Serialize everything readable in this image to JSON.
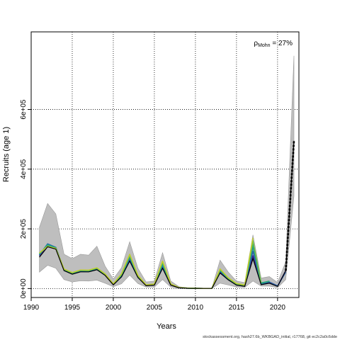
{
  "chart_data": {
    "type": "line",
    "xlabel": "Years",
    "ylabel": "Recruits (age 1)",
    "xlim": [
      1990,
      2022.6
    ],
    "ylim": [
      -30000,
      860000
    ],
    "x_ticks": [
      1990,
      1995,
      2000,
      2005,
      2010,
      2015,
      2020
    ],
    "x_tick_labels": [
      "1990",
      "1995",
      "2000",
      "2005",
      "2010",
      "2015",
      "2020"
    ],
    "y_ticks": [
      0,
      200000,
      400000,
      600000
    ],
    "y_tick_labels": [
      "0e+00",
      "2e+05",
      "4e+05",
      "6e+05"
    ],
    "grid": true,
    "annotation": {
      "prefix": "ρ",
      "subscript": "Mohn",
      "text": " = 27%"
    },
    "footer": "stockassessment.org, hash27.6b_WKBGAD_initial, r17768, git ec2c2a0c6dde",
    "years": [
      1991,
      1992,
      1993,
      1994,
      1995,
      1996,
      1997,
      1998,
      1999,
      2000,
      2001,
      2002,
      2003,
      2004,
      2005,
      2006,
      2007,
      2008,
      2009,
      2010,
      2011,
      2012,
      2013,
      2014,
      2015,
      2016,
      2017,
      2018,
      2019,
      2020,
      2021,
      2022
    ],
    "band_upper": [
      205000,
      285000,
      250000,
      115000,
      100000,
      115000,
      112000,
      142000,
      75000,
      32000,
      70000,
      157000,
      68000,
      22000,
      25000,
      120000,
      25000,
      6000,
      3000,
      1500,
      1000,
      1500,
      95000,
      55000,
      25000,
      20000,
      180000,
      35000,
      40000,
      20000,
      90000,
      780000
    ],
    "band_lower": [
      55000,
      78000,
      68000,
      30000,
      22000,
      26000,
      25000,
      28000,
      18000,
      6000,
      16000,
      45000,
      17000,
      5000,
      5000,
      30000,
      5000,
      1000,
      500,
      200,
      150,
      200,
      18000,
      12000,
      5000,
      4000,
      25000,
      8000,
      8000,
      3000,
      30000,
      310000
    ],
    "colors": {
      "band": "#bebebe",
      "band_edge": "#9a9a9a",
      "final": "#000000"
    },
    "series": [
      {
        "color": "#3b1f8c",
        "values": [
          110000,
          145000,
          135000,
          62000,
          50000,
          58000,
          57000,
          65000,
          45000,
          13000,
          40000,
          95000,
          38000,
          10000,
          12000,
          70000,
          12000,
          2500,
          1000,
          600,
          400,
          500,
          55000,
          30000,
          12000,
          8000,
          110000,
          14000,
          20000,
          8000,
          60000
        ]
      },
      {
        "color": "#2c5ea8",
        "values": [
          112000,
          150000,
          138000,
          64000,
          52000,
          59000,
          58000,
          66000,
          46000,
          14000,
          42000,
          100000,
          40000,
          10500,
          13000,
          75000,
          13000,
          2800,
          1100,
          650,
          420,
          520,
          58000,
          32000,
          13000,
          9000,
          125000,
          15000,
          22000,
          9000,
          55000
        ]
      },
      {
        "color": "#1f8f9a",
        "values": [
          114000,
          148000,
          137000,
          63000,
          51000,
          60000,
          59000,
          67000,
          47000,
          14500,
          44000,
          105000,
          41000,
          11000,
          13500,
          80000,
          13500,
          3000,
          1200,
          700,
          450,
          550,
          60000,
          33000,
          14000,
          9500,
          140000,
          17000,
          24000
        ]
      },
      {
        "color": "#2aa876",
        "values": [
          116000,
          145000,
          136000,
          64000,
          52000,
          61000,
          60000,
          68000,
          48000,
          15000,
          46000,
          108000,
          42000,
          11500,
          14000,
          85000,
          14000,
          3100,
          1250,
          720,
          470,
          570,
          62000,
          34000,
          15000,
          10000,
          150000,
          19000,
          25000
        ]
      },
      {
        "color": "#6cbf4a",
        "values": [
          118000,
          142000,
          135000,
          65000,
          53000,
          61500,
          61000,
          69000,
          48500,
          15500,
          48000,
          112000,
          43000,
          12000,
          14500,
          90000,
          14500,
          3200,
          1300,
          740,
          480,
          580,
          64000,
          35000,
          16000,
          11000,
          160000,
          20000
        ]
      },
      {
        "color": "#bfcf2a",
        "values": [
          119000,
          141000,
          134000,
          65500,
          53500,
          62000,
          61500,
          69500,
          49000,
          16000,
          49000,
          115000,
          44000,
          12500,
          15000,
          92000,
          15000,
          3300,
          1350,
          760,
          490,
          590,
          66000,
          36000,
          17000,
          12000,
          170000
        ]
      }
    ],
    "final_series_values": [
      105000,
      140000,
      132000,
      60000,
      48000,
      56000,
      56000,
      63000,
      44000,
      12500,
      39000,
      92000,
      37000,
      9500,
      11500,
      68000,
      11500,
      2300,
      900,
      550,
      380,
      480,
      52000,
      29000,
      11500,
      7500,
      100000,
      13000,
      18000,
      7000,
      60000,
      495000
    ]
  }
}
